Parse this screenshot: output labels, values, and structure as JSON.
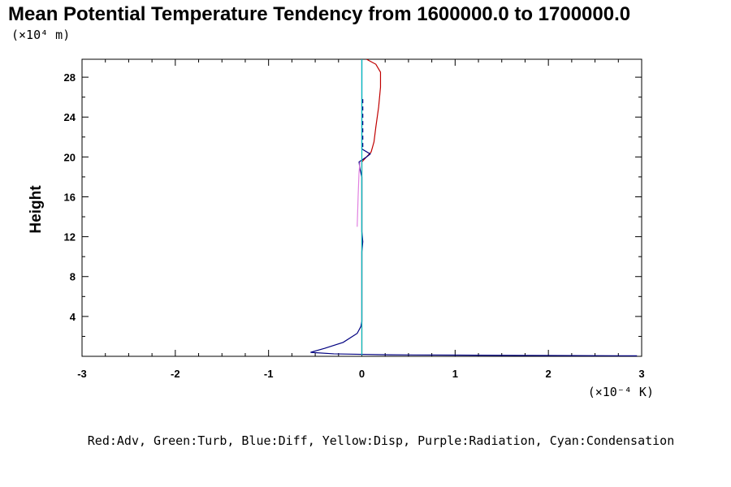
{
  "chart_data": {
    "type": "line",
    "title": "Mean Potential Temperature Tendency from 1600000.0 to 1700000.0",
    "ylabel": "Height",
    "y_unit": "(×10⁴ m)",
    "x_unit": "(×10⁻⁴ K)",
    "xlim": [
      -3,
      3
    ],
    "ylim": [
      0,
      29.8
    ],
    "x_ticks": [
      -3,
      -2,
      -1,
      0,
      1,
      2,
      3
    ],
    "x_tick_labels": [
      "-3",
      "-2",
      "-1",
      "0",
      "1",
      "2",
      "3"
    ],
    "y_ticks": [
      4,
      8,
      12,
      16,
      20,
      24,
      28
    ],
    "y_tick_labels": [
      "4",
      "8",
      "12",
      "16",
      "20",
      "24",
      "28"
    ],
    "legend_text": "Red:Adv, Green:Turb, Blue:Diff, Yellow:Disp, Purple:Radiation, Cyan:Condensation",
    "series": [
      {
        "color": "#c00000",
        "points": [
          [
            0.0,
            0.1
          ],
          [
            0.0,
            2.5
          ],
          [
            0.0,
            12
          ],
          [
            0.0,
            18.5
          ],
          [
            0.0,
            19.5
          ],
          [
            0.05,
            20.0
          ],
          [
            0.1,
            20.5
          ],
          [
            0.13,
            21.5
          ],
          [
            0.15,
            23
          ],
          [
            0.18,
            25
          ],
          [
            0.2,
            27
          ],
          [
            0.2,
            28.5
          ],
          [
            0.15,
            29.3
          ],
          [
            0.05,
            29.8
          ]
        ]
      },
      {
        "color": "#000080",
        "points": [
          [
            2.95,
            0.05
          ],
          [
            2.0,
            0.08
          ],
          [
            1.0,
            0.12
          ],
          [
            0.3,
            0.15
          ],
          [
            0.0,
            0.2
          ],
          [
            -0.3,
            0.25
          ],
          [
            -0.55,
            0.4
          ],
          [
            -0.4,
            0.8
          ],
          [
            -0.2,
            1.4
          ],
          [
            -0.05,
            2.3
          ],
          [
            -0.01,
            3.0
          ],
          [
            0.0,
            3.5
          ],
          [
            0.0,
            10.5
          ],
          [
            0.01,
            11.5
          ],
          [
            0.0,
            12.5
          ],
          [
            0.0,
            18.0
          ],
          [
            -0.02,
            18.8
          ],
          [
            -0.03,
            19.5
          ],
          [
            0.05,
            20.0
          ],
          [
            0.09,
            20.3
          ],
          [
            0.0,
            20.8
          ],
          [
            0.0,
            29.8
          ]
        ]
      },
      {
        "color": "#00c0c0",
        "points": [
          [
            0.0,
            0.1
          ],
          [
            0.0,
            29.8
          ]
        ]
      },
      {
        "color": "#e080e0",
        "points": [
          [
            -0.05,
            13
          ],
          [
            -0.04,
            16
          ],
          [
            -0.03,
            18.5
          ],
          [
            -0.02,
            19.5
          ]
        ]
      },
      {
        "color": "#000080",
        "dash": "5,4",
        "points": [
          [
            0.01,
            21.0
          ],
          [
            0.01,
            26.0
          ]
        ]
      }
    ]
  }
}
